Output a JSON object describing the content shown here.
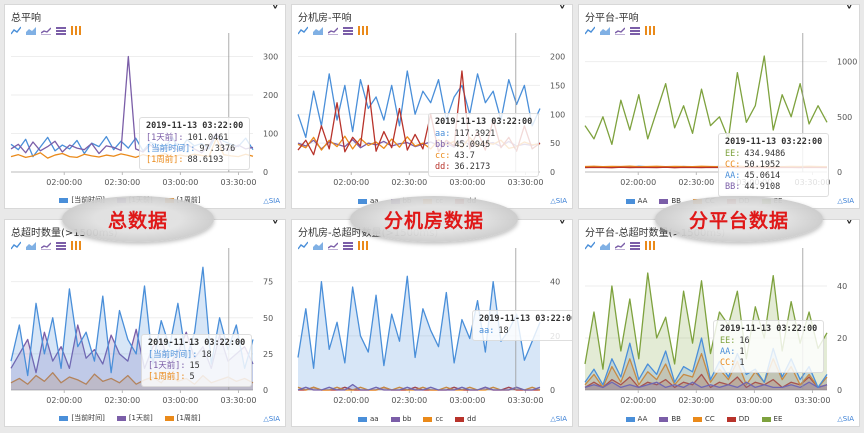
{
  "colors": {
    "blue": "#4a8fd9",
    "purple": "#7b5ea8",
    "orange": "#ea8a1a",
    "red": "#b8332b",
    "green": "#7ea23e",
    "gray": "#888888"
  },
  "toolbar_icons": [
    "line-chart-icon",
    "area-chart-icon",
    "stack-chart-icon",
    "bar-icon",
    "table-icon"
  ],
  "brand": "SIA",
  "xticks": [
    "02:00:00",
    "02:30:00",
    "03:00:00",
    "03:30:00"
  ],
  "overlays": [
    "总数据",
    "分机房数据",
    "分平台数据"
  ],
  "panels": [
    {
      "title": "总平响",
      "legend": [
        {
          "name": "[当前时间]",
          "color": "#4a8fd9"
        },
        {
          "name": "[1天前]",
          "color": "#7b5ea8"
        },
        {
          "name": "[1周前]",
          "color": "#ea8a1a"
        }
      ],
      "tooltip": {
        "time": "2019-11-13 03:22:00",
        "rows": [
          {
            "label": "[1天前]:",
            "value": "101.0461",
            "color": "#7b5ea8"
          },
          {
            "label": "[当前时间]:",
            "value": "97.3376",
            "color": "#4a8fd9"
          },
          {
            "label": "[1周前]:",
            "value": "88.6193",
            "color": "#ea8a1a"
          }
        ]
      }
    },
    {
      "title": "分机房-平响",
      "legend": [
        {
          "name": "aa",
          "color": "#4a8fd9"
        },
        {
          "name": "bb",
          "color": "#7b5ea8"
        },
        {
          "name": "cc",
          "color": "#ea8a1a"
        },
        {
          "name": "dd",
          "color": "#b8332b"
        }
      ],
      "tooltip": {
        "time": "2019-11-13 03:22:00",
        "rows": [
          {
            "label": "aa:",
            "value": "117.3921",
            "color": "#4a8fd9"
          },
          {
            "label": "bb:",
            "value": "45.0945",
            "color": "#7b5ea8"
          },
          {
            "label": "cc:",
            "value": "43.7",
            "color": "#ea8a1a"
          },
          {
            "label": "dd:",
            "value": "36.2173",
            "color": "#b8332b"
          }
        ]
      }
    },
    {
      "title": "分平台-平响",
      "legend": [
        {
          "name": "AA",
          "color": "#4a8fd9"
        },
        {
          "name": "BB",
          "color": "#7b5ea8"
        },
        {
          "name": "CC",
          "color": "#ea8a1a"
        },
        {
          "name": "DD",
          "color": "#b8332b"
        },
        {
          "name": "EE",
          "color": "#7ea23e"
        }
      ],
      "tooltip": {
        "time": "2019-11-13 03:22:00",
        "rows": [
          {
            "label": "EE:",
            "value": "434.9486",
            "color": "#7ea23e"
          },
          {
            "label": "CC:",
            "value": "50.1952",
            "color": "#ea8a1a"
          },
          {
            "label": "AA:",
            "value": "45.0614",
            "color": "#4a8fd9"
          },
          {
            "label": "BB:",
            "value": "44.9108",
            "color": "#7b5ea8"
          }
        ]
      }
    },
    {
      "title": "总超时数量(>1500ms)",
      "legend": [
        {
          "name": "[当前时间]",
          "color": "#4a8fd9"
        },
        {
          "name": "[1天前]",
          "color": "#7b5ea8"
        },
        {
          "name": "[1周前]",
          "color": "#ea8a1a"
        }
      ],
      "tooltip": {
        "time": "2019-11-13 03:22:00",
        "rows": [
          {
            "label": "[当前时间]:",
            "value": "18",
            "color": "#4a8fd9"
          },
          {
            "label": "[1天前]:",
            "value": "15",
            "color": "#7b5ea8"
          },
          {
            "label": "[1周前]:",
            "value": "5",
            "color": "#ea8a1a"
          }
        ]
      }
    },
    {
      "title": "分机房-总超时数量(>1500ms)",
      "legend": [
        {
          "name": "aa",
          "color": "#4a8fd9"
        },
        {
          "name": "bb",
          "color": "#7b5ea8"
        },
        {
          "name": "cc",
          "color": "#ea8a1a"
        },
        {
          "name": "dd",
          "color": "#b8332b"
        }
      ],
      "tooltip": {
        "time": "2019-11-13 03:22:00",
        "rows": [
          {
            "label": "aa:",
            "value": "18",
            "color": "#4a8fd9"
          }
        ]
      }
    },
    {
      "title": "分平台-总超时数量(>1500ms)",
      "legend": [
        {
          "name": "AA",
          "color": "#4a8fd9"
        },
        {
          "name": "BB",
          "color": "#7b5ea8"
        },
        {
          "name": "CC",
          "color": "#ea8a1a"
        },
        {
          "name": "DD",
          "color": "#b8332b"
        },
        {
          "name": "EE",
          "color": "#7ea23e"
        }
      ],
      "tooltip": {
        "time": "2019-11-13 03:22:00",
        "rows": [
          {
            "label": "EE:",
            "value": "16",
            "color": "#7ea23e"
          },
          {
            "label": "AA:",
            "value": "1",
            "color": "#4a8fd9"
          },
          {
            "label": "CC:",
            "value": "1",
            "color": "#ea8a1a"
          }
        ]
      }
    }
  ],
  "chart_data": [
    {
      "type": "line",
      "title": "总平响",
      "yticks": [
        0,
        100,
        200,
        300
      ],
      "ylim": [
        0,
        330
      ],
      "series": [
        {
          "name": "[当前时间]",
          "values": [
            72,
            58,
            85,
            40,
            65,
            90,
            55,
            70,
            60,
            82,
            48,
            75,
            66,
            92,
            58,
            80,
            62,
            88,
            55,
            77,
            70,
            64,
            90,
            56,
            84,
            68,
            74,
            60,
            97,
            80,
            72,
            66,
            88,
            58
          ]
        },
        {
          "name": "[1天前]",
          "values": [
            60,
            72,
            50,
            78,
            55,
            66,
            80,
            52,
            70,
            62,
            58,
            74,
            48,
            68,
            64,
            56,
            300,
            60,
            52,
            70,
            58,
            62,
            66,
            54,
            72,
            60,
            50,
            68,
            101,
            62,
            56,
            70,
            60,
            64
          ]
        },
        {
          "name": "[1周前]",
          "values": [
            40,
            45,
            38,
            42,
            50,
            36,
            44,
            48,
            40,
            38,
            46,
            42,
            39,
            44,
            41,
            47,
            43,
            38,
            45,
            40,
            42,
            48,
            39,
            44,
            41,
            46,
            43,
            40,
            88,
            45,
            42,
            40,
            46,
            41
          ]
        }
      ]
    },
    {
      "type": "line",
      "title": "分机房-平响",
      "yticks": [
        0,
        50,
        100,
        150,
        200
      ],
      "ylim": [
        0,
        220
      ],
      "series": [
        {
          "name": "aa",
          "values": [
            100,
            60,
            140,
            80,
            170,
            90,
            150,
            70,
            160,
            110,
            130,
            90,
            150,
            80,
            175,
            100,
            140,
            120,
            160,
            90,
            130,
            150,
            100,
            170,
            120,
            140,
            90,
            160,
            117,
            150,
            80,
            110
          ]
        },
        {
          "name": "bb",
          "values": [
            50,
            45,
            55,
            40,
            52,
            48,
            44,
            56,
            42,
            50,
            47,
            53,
            45,
            49,
            51,
            44,
            48,
            52,
            46,
            50,
            43,
            55,
            47,
            45,
            49,
            51,
            44,
            53,
            45,
            48,
            46,
            50
          ]
        },
        {
          "name": "cc",
          "values": [
            48,
            42,
            60,
            38,
            55,
            44,
            62,
            40,
            58,
            46,
            52,
            41,
            57,
            43,
            61,
            45,
            50,
            40,
            56,
            47,
            53,
            42,
            60,
            44,
            51,
            48,
            55,
            41,
            44,
            52,
            47,
            49
          ]
        },
        {
          "name": "dd",
          "values": [
            38,
            55,
            30,
            80,
            40,
            120,
            35,
            60,
            45,
            150,
            36,
            70,
            42,
            110,
            38,
            65,
            40,
            100,
            35,
            55,
            45,
            175,
            40,
            70,
            38,
            90,
            42,
            60,
            36,
            80,
            40,
            50
          ]
        }
      ]
    },
    {
      "type": "line",
      "title": "分平台-平响",
      "yticks": [
        0,
        500,
        1000
      ],
      "ylim": [
        0,
        1150
      ],
      "series": [
        {
          "name": "AA",
          "values": [
            45,
            50,
            42,
            48,
            46,
            44,
            52,
            47,
            43,
            49,
            45,
            50,
            46,
            48,
            44,
            51,
            47,
            45,
            49,
            46,
            48,
            45,
            50,
            44,
            47,
            46,
            45,
            48
          ]
        },
        {
          "name": "BB",
          "values": [
            44,
            46,
            45,
            43,
            47,
            44,
            46,
            45,
            48,
            44,
            45,
            46,
            43,
            47,
            45,
            44,
            46,
            45,
            44,
            47,
            45,
            46,
            44,
            45,
            46,
            44,
            45,
            47
          ]
        },
        {
          "name": "CC",
          "values": [
            50,
            52,
            49,
            51,
            50,
            53,
            48,
            50,
            52,
            49,
            51,
            50,
            48,
            52,
            50,
            49,
            51,
            53,
            50,
            48,
            52,
            50,
            49,
            51,
            50,
            52,
            50,
            49
          ]
        },
        {
          "name": "DD",
          "values": [
            40,
            42,
            41,
            39,
            43,
            40,
            42,
            41,
            40,
            43,
            39,
            42,
            41,
            40,
            42,
            41,
            43,
            40,
            41,
            42,
            40,
            39,
            42,
            41,
            40,
            42,
            41,
            40
          ]
        },
        {
          "name": "EE",
          "values": [
            420,
            300,
            500,
            250,
            650,
            380,
            700,
            300,
            550,
            800,
            400,
            600,
            350,
            750,
            420,
            500,
            300,
            900,
            450,
            600,
            1050,
            380,
            700,
            500,
            800,
            435,
            600,
            450
          ]
        }
      ]
    },
    {
      "type": "area",
      "title": "总超时数量(>1500ms)",
      "yticks": [
        0,
        25,
        50,
        75
      ],
      "ylim": [
        0,
        90
      ],
      "series": [
        {
          "name": "[当前时间]",
          "values": [
            20,
            45,
            10,
            60,
            25,
            50,
            15,
            70,
            30,
            40,
            20,
            65,
            12,
            55,
            35,
            25,
            72,
            18,
            48,
            30,
            60,
            22,
            40,
            85,
            18,
            50,
            28,
            45,
            15,
            35
          ]
        },
        {
          "name": "[1天前]",
          "values": [
            15,
            25,
            35,
            12,
            40,
            20,
            30,
            15,
            45,
            22,
            28,
            18,
            38,
            25,
            20,
            42,
            15,
            30,
            35,
            18,
            26,
            40,
            22,
            30,
            15,
            38,
            20,
            25,
            30,
            18
          ]
        },
        {
          "name": "[1周前]",
          "values": [
            5,
            8,
            4,
            10,
            6,
            12,
            5,
            9,
            7,
            4,
            11,
            6,
            8,
            5,
            10,
            4,
            7,
            9,
            5,
            12,
            6,
            8,
            4,
            10,
            5,
            7,
            9,
            6,
            8,
            5
          ]
        }
      ]
    },
    {
      "type": "area",
      "title": "分机房-总超时数量(>1500ms)",
      "yticks": [
        0,
        20,
        40
      ],
      "ylim": [
        0,
        48
      ],
      "series": [
        {
          "name": "aa",
          "values": [
            12,
            30,
            8,
            40,
            15,
            25,
            10,
            38,
            20,
            14,
            35,
            9,
            28,
            18,
            42,
            12,
            30,
            22,
            16,
            36,
            10,
            26,
            19,
            33,
            14,
            40,
            18,
            22,
            28,
            11,
            18,
            25
          ]
        },
        {
          "name": "bb",
          "values": [
            0,
            1,
            0,
            0,
            1,
            0,
            0,
            2,
            0,
            0,
            1,
            0,
            0,
            0,
            1,
            0,
            0,
            1,
            0,
            0,
            0,
            1,
            0,
            0,
            1,
            0,
            0,
            0,
            1,
            0,
            0,
            1
          ]
        },
        {
          "name": "cc",
          "values": [
            1,
            0,
            1,
            0,
            0,
            1,
            0,
            0,
            1,
            0,
            0,
            1,
            0,
            1,
            0,
            0,
            1,
            0,
            0,
            1,
            0,
            0,
            1,
            0,
            0,
            1,
            0,
            0,
            1,
            0,
            1,
            0
          ]
        },
        {
          "name": "dd",
          "values": [
            0,
            0,
            1,
            0,
            0,
            0,
            1,
            0,
            0,
            0,
            0,
            1,
            0,
            0,
            0,
            1,
            0,
            0,
            0,
            0,
            1,
            0,
            0,
            0,
            1,
            0,
            0,
            1,
            0,
            0,
            0,
            0
          ]
        }
      ]
    },
    {
      "type": "area",
      "title": "分平台-总超时数量(>1500ms)",
      "yticks": [
        0,
        20,
        40
      ],
      "ylim": [
        0,
        50
      ],
      "series": [
        {
          "name": "AA",
          "values": [
            3,
            8,
            2,
            12,
            5,
            18,
            4,
            10,
            6,
            15,
            3,
            9,
            7,
            20,
            4,
            11,
            5,
            14,
            6,
            8,
            3,
            16,
            5,
            12,
            4,
            9,
            1,
            6
          ]
        },
        {
          "name": "BB",
          "values": [
            1,
            2,
            1,
            3,
            1,
            2,
            1,
            2,
            3,
            1,
            2,
            1,
            3,
            1,
            2,
            1,
            2,
            1,
            3,
            1,
            2,
            1,
            1,
            2,
            1,
            3,
            1,
            2
          ]
        },
        {
          "name": "CC",
          "values": [
            2,
            6,
            1,
            9,
            3,
            12,
            2,
            7,
            4,
            10,
            2,
            6,
            5,
            14,
            3,
            8,
            4,
            11,
            2,
            7,
            3,
            12,
            4,
            9,
            2,
            6,
            1,
            5
          ]
        },
        {
          "name": "DD",
          "values": [
            1,
            3,
            1,
            4,
            2,
            5,
            1,
            3,
            2,
            4,
            1,
            3,
            2,
            6,
            1,
            3,
            2,
            5,
            1,
            3,
            2,
            4,
            1,
            3,
            2,
            5,
            1,
            2
          ]
        },
        {
          "name": "EE",
          "values": [
            10,
            30,
            8,
            40,
            15,
            35,
            12,
            45,
            20,
            28,
            10,
            38,
            18,
            42,
            14,
            30,
            25,
            38,
            12,
            32,
            20,
            44,
            15,
            34,
            18,
            30,
            16,
            22
          ]
        }
      ]
    }
  ]
}
